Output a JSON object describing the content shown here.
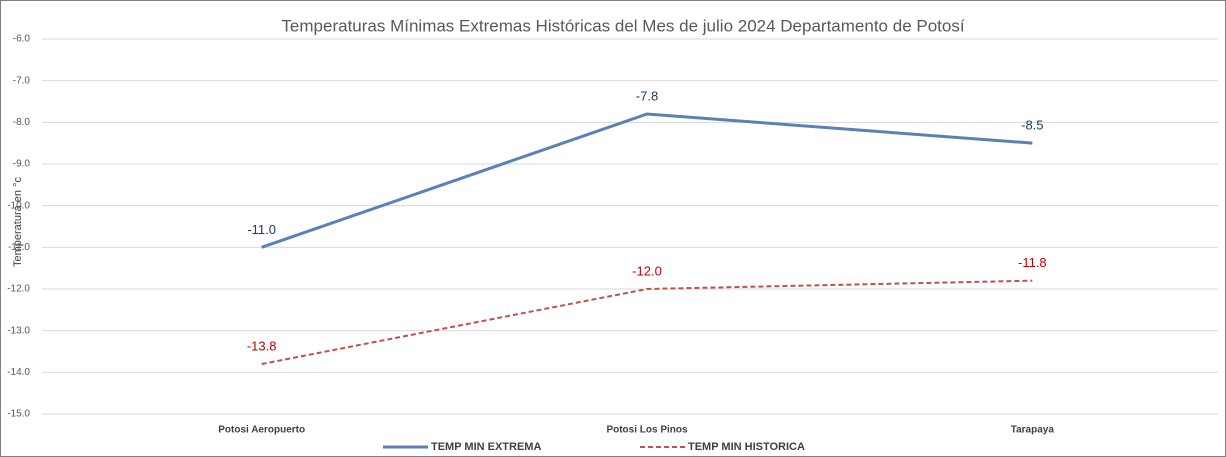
{
  "chart_data": {
    "type": "line",
    "title": "Temperaturas  Mínimas Extremas Históricas del Mes de julio 2024 Departamento de Potosí",
    "y_label": "Temperatura en °c",
    "categories": [
      "Potosi Aeropuerto",
      "Potosi Los Pinos",
      "Tarapaya"
    ],
    "series": [
      {
        "name": "TEMP MIN EXTREMA",
        "color": "#5b80b8",
        "label_color": "#1f3864",
        "dashed": false,
        "values": [
          -11.0,
          -7.8,
          -8.5
        ],
        "value_labels": [
          "-11.0",
          "-7.8",
          "-8.5"
        ]
      },
      {
        "name": "TEMP MIN HISTORICA",
        "color": "#c0504d",
        "label_color": "#c00000",
        "dashed": true,
        "values": [
          -13.8,
          -12.0,
          -11.8
        ],
        "value_labels": [
          "-13.8",
          "-12.0",
          "-11.8"
        ]
      }
    ],
    "ylim": [
      -15,
      -6
    ],
    "yticks": [
      {
        "value": -15,
        "label": "-15.0"
      },
      {
        "value": -14,
        "label": "-14.0"
      },
      {
        "value": -13,
        "label": "-13.0"
      },
      {
        "value": -12,
        "label": "-12.0"
      },
      {
        "value": -11,
        "label": "-11.0"
      },
      {
        "value": -10,
        "label": "-10.0"
      },
      {
        "value": -9,
        "label": "-9.0"
      },
      {
        "value": -8,
        "label": "-8.0"
      },
      {
        "value": -7,
        "label": "-7.0"
      },
      {
        "value": -6,
        "label": "-6.0"
      }
    ],
    "grid": true
  }
}
